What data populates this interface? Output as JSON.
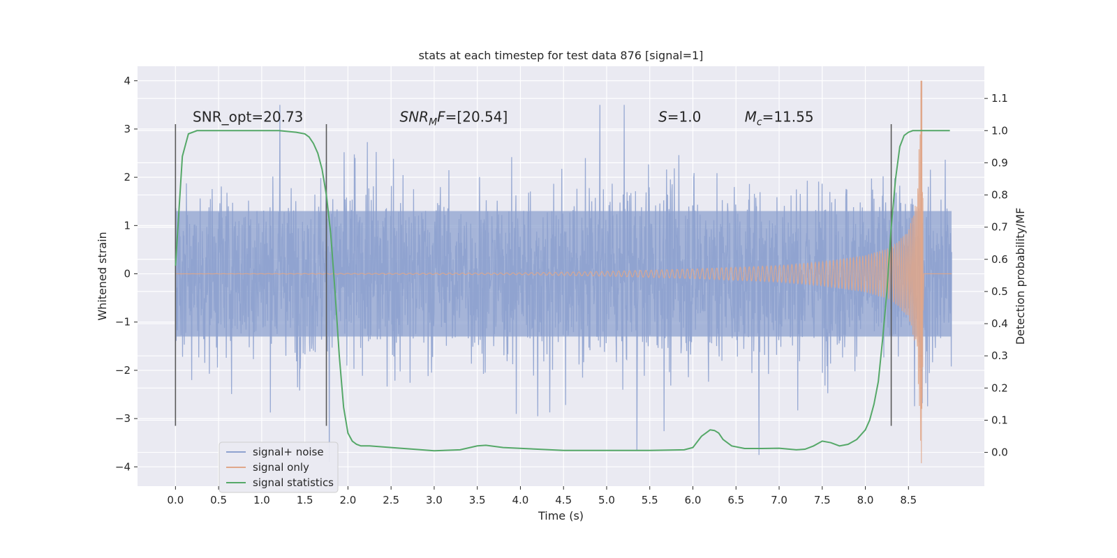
{
  "chart_data": {
    "type": "line",
    "title": "stats at each timestep for test data 876 [signal=1]",
    "xlabel": "Time (s)",
    "ylabel": "Whitened strain",
    "y2label": "Detection probability/MF",
    "xlim": [
      -0.44,
      9.38
    ],
    "ylim": [
      -4.4,
      4.3
    ],
    "y2lim": [
      -0.105,
      1.2
    ],
    "x_ticks": [
      "0.0",
      "0.5",
      "1.0",
      "1.5",
      "2.0",
      "2.5",
      "3.0",
      "3.5",
      "4.0",
      "4.5",
      "5.0",
      "5.5",
      "6.0",
      "6.5",
      "7.0",
      "7.5",
      "8.0",
      "8.5"
    ],
    "y_ticks": [
      "4",
      "3",
      "2",
      "1",
      "0",
      "−1",
      "−2",
      "−3",
      "−4"
    ],
    "y_tick_values": [
      4,
      3,
      2,
      1,
      0,
      -1,
      -2,
      -3,
      -4
    ],
    "y2_ticks": [
      "1.1",
      "1.0",
      "0.9",
      "0.8",
      "0.7",
      "0.6",
      "0.5",
      "0.4",
      "0.3",
      "0.2",
      "0.1",
      "0.0"
    ],
    "y2_tick_values": [
      1.1,
      1.0,
      0.9,
      0.8,
      0.7,
      0.6,
      0.5,
      0.4,
      0.3,
      0.2,
      0.1,
      0.0
    ],
    "grid": true,
    "legend_position": "lower-left",
    "series": [
      {
        "name": "signal+ noise",
        "color": "#8ea2cf",
        "axis": "left",
        "x_range": [
          0.0,
          9.0
        ],
        "typical_amplitude": 1.3,
        "peak_range": [
          -4.0,
          3.5
        ]
      },
      {
        "name": "signal only",
        "color": "#e0a78a",
        "axis": "left",
        "x_range": [
          0.0,
          9.0
        ],
        "envelope": {
          "x": [
            0.0,
            4.0,
            5.0,
            6.0,
            7.0,
            7.5,
            8.0,
            8.3,
            8.5,
            8.6,
            8.65,
            8.68,
            9.0
          ],
          "y": [
            0.0,
            0.02,
            0.05,
            0.1,
            0.17,
            0.25,
            0.38,
            0.55,
            0.9,
            1.6,
            4.0,
            0.0,
            0.0
          ]
        },
        "merger_time": 8.65,
        "merger_peak": 4.0
      },
      {
        "name": "signal statistics",
        "color": "#55a868",
        "axis": "right",
        "x": [
          0.0,
          0.08,
          0.15,
          0.25,
          0.4,
          0.6,
          0.8,
          1.0,
          1.2,
          1.4,
          1.5,
          1.55,
          1.6,
          1.65,
          1.7,
          1.75,
          1.8,
          1.85,
          1.9,
          1.95,
          2.0,
          2.05,
          2.1,
          2.15,
          2.25,
          2.5,
          3.0,
          3.3,
          3.5,
          3.6,
          3.8,
          4.2,
          4.5,
          5.0,
          5.5,
          5.9,
          6.0,
          6.1,
          6.2,
          6.25,
          6.3,
          6.35,
          6.45,
          6.6,
          6.8,
          7.0,
          7.2,
          7.3,
          7.4,
          7.5,
          7.6,
          7.7,
          7.8,
          7.9,
          8.0,
          8.05,
          8.1,
          8.15,
          8.2,
          8.25,
          8.3,
          8.35,
          8.4,
          8.45,
          8.5,
          8.55,
          8.6,
          8.7,
          8.8,
          8.9,
          8.98
        ],
        "y": [
          0.58,
          0.92,
          0.99,
          1.0,
          1.0,
          1.0,
          1.0,
          1.0,
          1.0,
          0.995,
          0.99,
          0.98,
          0.96,
          0.93,
          0.88,
          0.8,
          0.68,
          0.5,
          0.3,
          0.14,
          0.06,
          0.035,
          0.025,
          0.02,
          0.02,
          0.015,
          0.005,
          0.008,
          0.02,
          0.022,
          0.015,
          0.01,
          0.006,
          0.006,
          0.006,
          0.008,
          0.015,
          0.05,
          0.07,
          0.068,
          0.06,
          0.04,
          0.02,
          0.012,
          0.012,
          0.013,
          0.008,
          0.01,
          0.02,
          0.035,
          0.03,
          0.02,
          0.025,
          0.04,
          0.07,
          0.1,
          0.15,
          0.22,
          0.35,
          0.5,
          0.7,
          0.85,
          0.95,
          0.985,
          0.995,
          1.0,
          1.0,
          1.0,
          1.0,
          1.0,
          1.0
        ]
      }
    ],
    "vlines": [
      0.0,
      1.75,
      8.3
    ],
    "vline_range": [
      -3.15,
      3.1
    ],
    "annotations": [
      {
        "id": "snr-opt",
        "plain": "SNR_opt=20.73",
        "x": 0.2,
        "y": 3.15
      },
      {
        "id": "snr-mf",
        "prefix_italic": "SNR",
        "sub": "M",
        "italic_tail": "F",
        "rest": "=[20.54]",
        "x": 2.6,
        "y": 3.15
      },
      {
        "id": "s-value",
        "prefix_italic": "S",
        "rest": "=1.0",
        "x": 5.6,
        "y": 3.15
      },
      {
        "id": "mc-value",
        "prefix_italic": "M",
        "sub": "c",
        "rest": "=11.55",
        "x": 6.6,
        "y": 3.15
      }
    ]
  }
}
